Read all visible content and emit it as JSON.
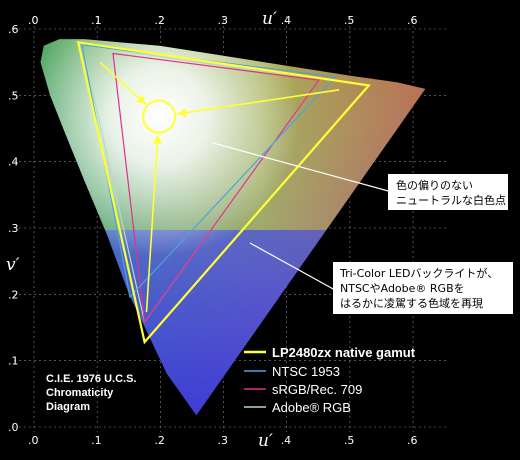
{
  "chart_data": {
    "type": "scatter",
    "title": "",
    "xlabel": "u′",
    "ylabel": "v′",
    "xlim": [
      0,
      0.63
    ],
    "ylim": [
      0,
      0.6
    ],
    "x_ticks": [
      ".0",
      ".1",
      ".2",
      ".3",
      ".4",
      ".5",
      ".6"
    ],
    "y_ticks": [
      ".0",
      ".1",
      ".2",
      ".3",
      ".4",
      ".5",
      ".6"
    ],
    "x_tick_values": [
      0,
      0.1,
      0.2,
      0.3,
      0.4,
      0.5,
      0.6
    ],
    "y_tick_values": [
      0,
      0.1,
      0.2,
      0.3,
      0.4,
      0.5,
      0.6
    ],
    "grid": true,
    "caption": [
      "C.I.E. 1976 U.C.S.",
      "Chromaticity",
      "Diagram"
    ],
    "spectral_locus": [
      [
        0.257,
        0.017
      ],
      [
        0.21,
        0.08
      ],
      [
        0.15,
        0.2
      ],
      [
        0.115,
        0.29
      ],
      [
        0.08,
        0.37
      ],
      [
        0.05,
        0.44
      ],
      [
        0.025,
        0.5
      ],
      [
        0.01,
        0.55
      ],
      [
        0.015,
        0.575
      ],
      [
        0.04,
        0.585
      ],
      [
        0.08,
        0.585
      ],
      [
        0.14,
        0.58
      ],
      [
        0.2,
        0.575
      ],
      [
        0.3,
        0.56
      ],
      [
        0.4,
        0.545
      ],
      [
        0.5,
        0.53
      ],
      [
        0.575,
        0.52
      ],
      [
        0.62,
        0.51
      ]
    ],
    "series": [
      {
        "name": "LP2480zx native gamut",
        "color": "#ffff33",
        "points": [
          [
            0.07,
            0.58
          ],
          [
            0.53,
            0.515
          ],
          [
            0.175,
            0.128
          ]
        ]
      },
      {
        "name": "NTSC 1953",
        "color": "#4aa3e0",
        "points": [
          [
            0.076,
            0.576
          ],
          [
            0.477,
            0.528
          ],
          [
            0.152,
            0.196
          ]
        ]
      },
      {
        "name": "sRGB/Rec. 709",
        "color": "#e0308c",
        "points": [
          [
            0.125,
            0.563
          ],
          [
            0.451,
            0.523
          ],
          [
            0.175,
            0.158
          ]
        ]
      },
      {
        "name": "Adobe® RGB",
        "color": "#b8d8c8",
        "points": [
          [
            0.076,
            0.576
          ],
          [
            0.451,
            0.523
          ],
          [
            0.175,
            0.158
          ]
        ]
      }
    ],
    "white_point": {
      "u": 0.198,
      "v": 0.468
    },
    "annotations": [
      {
        "lines": [
          "色の偏りのない",
          "ニュートラルな白色点"
        ]
      },
      {
        "lines": [
          "Tri-Color LEDバックライトが、",
          "NTSCやAdobe® RGBを",
          "はるかに凌駕する色域を再現"
        ]
      }
    ]
  }
}
